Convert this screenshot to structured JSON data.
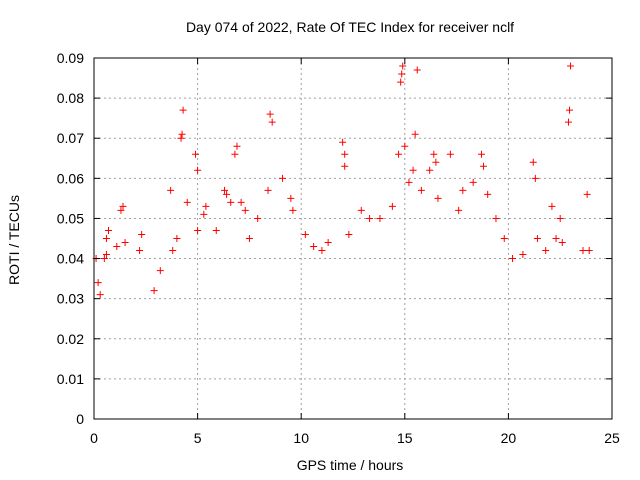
{
  "chart_data": {
    "type": "scatter",
    "title": "Day 074 of 2022, Rate Of TEC Index for receiver nclf",
    "xlabel": "GPS time / hours",
    "ylabel": "ROTI / TECUs",
    "xlim": [
      0,
      25
    ],
    "ylim": [
      0,
      0.09
    ],
    "x_ticks": [
      "0",
      "5",
      "10",
      "15",
      "20",
      "25"
    ],
    "y_ticks": [
      "0",
      "0.01",
      "0.02",
      "0.03",
      "0.04",
      "0.05",
      "0.06",
      "0.07",
      "0.08",
      "0.09"
    ],
    "grid": true,
    "legend": "none",
    "marker": "+",
    "color": "#ff0000",
    "series": [
      {
        "points": [
          [
            0.1,
            0.04
          ],
          [
            0.2,
            0.034
          ],
          [
            0.3,
            0.031
          ],
          [
            0.5,
            0.04
          ],
          [
            0.6,
            0.045
          ],
          [
            0.6,
            0.041
          ],
          [
            0.7,
            0.047
          ],
          [
            1.1,
            0.043
          ],
          [
            1.3,
            0.052
          ],
          [
            1.4,
            0.053
          ],
          [
            1.5,
            0.044
          ],
          [
            2.2,
            0.042
          ],
          [
            2.3,
            0.046
          ],
          [
            2.9,
            0.032
          ],
          [
            3.2,
            0.037
          ],
          [
            3.7,
            0.057
          ],
          [
            3.8,
            0.042
          ],
          [
            4.0,
            0.045
          ],
          [
            4.2,
            0.07
          ],
          [
            4.25,
            0.071
          ],
          [
            4.3,
            0.077
          ],
          [
            4.5,
            0.054
          ],
          [
            4.9,
            0.066
          ],
          [
            5.0,
            0.062
          ],
          [
            5.0,
            0.047
          ],
          [
            5.3,
            0.051
          ],
          [
            5.4,
            0.053
          ],
          [
            5.9,
            0.047
          ],
          [
            6.3,
            0.057
          ],
          [
            6.4,
            0.056
          ],
          [
            6.6,
            0.054
          ],
          [
            6.8,
            0.066
          ],
          [
            6.9,
            0.068
          ],
          [
            7.1,
            0.054
          ],
          [
            7.3,
            0.052
          ],
          [
            7.5,
            0.045
          ],
          [
            7.9,
            0.05
          ],
          [
            8.4,
            0.057
          ],
          [
            8.5,
            0.076
          ],
          [
            8.6,
            0.074
          ],
          [
            9.1,
            0.06
          ],
          [
            9.5,
            0.055
          ],
          [
            9.6,
            0.052
          ],
          [
            10.2,
            0.046
          ],
          [
            10.6,
            0.043
          ],
          [
            11.0,
            0.042
          ],
          [
            11.3,
            0.044
          ],
          [
            12.0,
            0.069
          ],
          [
            12.1,
            0.066
          ],
          [
            12.1,
            0.063
          ],
          [
            12.3,
            0.046
          ],
          [
            12.9,
            0.052
          ],
          [
            13.3,
            0.05
          ],
          [
            13.8,
            0.05
          ],
          [
            14.4,
            0.053
          ],
          [
            14.7,
            0.066
          ],
          [
            14.8,
            0.084
          ],
          [
            14.85,
            0.086
          ],
          [
            14.9,
            0.088
          ],
          [
            15.0,
            0.068
          ],
          [
            15.2,
            0.059
          ],
          [
            15.4,
            0.062
          ],
          [
            15.5,
            0.071
          ],
          [
            15.6,
            0.087
          ],
          [
            15.8,
            0.057
          ],
          [
            16.2,
            0.062
          ],
          [
            16.4,
            0.066
          ],
          [
            16.5,
            0.064
          ],
          [
            16.6,
            0.055
          ],
          [
            17.2,
            0.066
          ],
          [
            17.6,
            0.052
          ],
          [
            17.8,
            0.057
          ],
          [
            18.3,
            0.059
          ],
          [
            18.7,
            0.066
          ],
          [
            18.8,
            0.063
          ],
          [
            19.0,
            0.056
          ],
          [
            19.4,
            0.05
          ],
          [
            19.8,
            0.045
          ],
          [
            20.2,
            0.04
          ],
          [
            20.7,
            0.041
          ],
          [
            21.2,
            0.064
          ],
          [
            21.3,
            0.06
          ],
          [
            21.4,
            0.045
          ],
          [
            21.8,
            0.042
          ],
          [
            22.1,
            0.053
          ],
          [
            22.3,
            0.045
          ],
          [
            22.5,
            0.05
          ],
          [
            22.6,
            0.044
          ],
          [
            22.9,
            0.074
          ],
          [
            22.95,
            0.077
          ],
          [
            23.0,
            0.088
          ],
          [
            23.6,
            0.042
          ],
          [
            23.8,
            0.056
          ],
          [
            23.9,
            0.042
          ]
        ]
      }
    ]
  }
}
